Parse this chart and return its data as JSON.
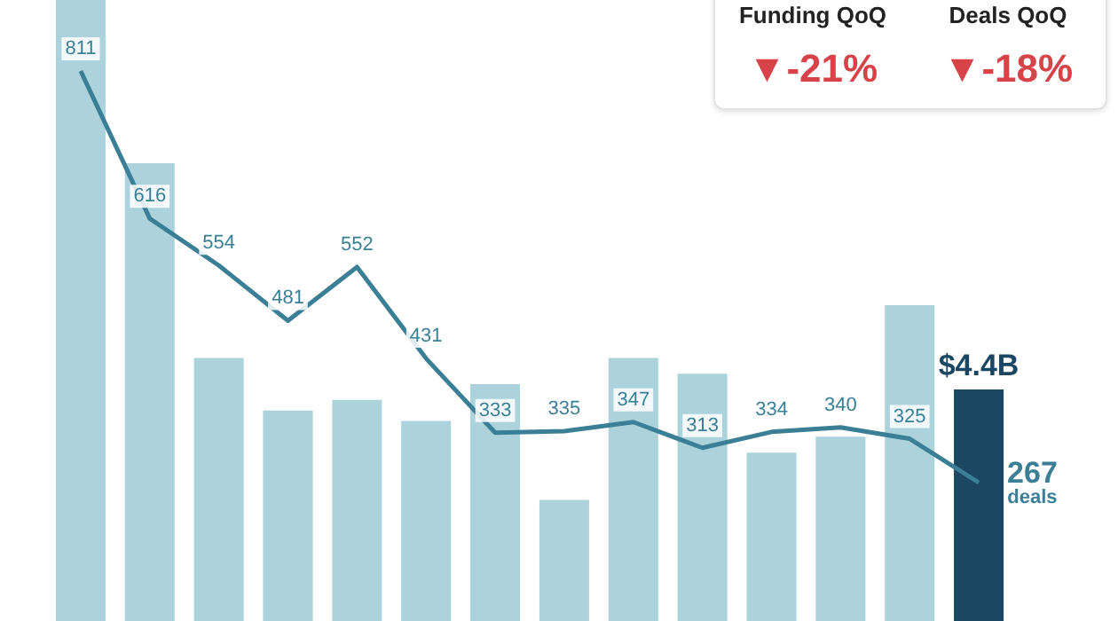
{
  "chart_data": [
    {
      "type": "bar",
      "tick_labels": false,
      "categories": [
        null,
        null,
        null,
        null,
        null,
        null,
        null,
        null,
        null,
        null,
        null,
        null,
        null,
        null
      ],
      "colors": [
        "#acd3dc",
        "#acd3dc",
        "#acd3dc",
        "#acd3dc",
        "#acd3dc",
        "#acd3dc",
        "#acd3dc",
        "#acd3dc",
        "#acd3dc",
        "#acd3dc",
        "#acd3dc",
        "#acd3dc",
        "#acd3dc",
        "#1c4763"
      ],
      "values": [
        11.8,
        8.7,
        5.0,
        4.0,
        4.2,
        3.8,
        4.5,
        2.3,
        5.0,
        4.7,
        3.2,
        3.5,
        6.0,
        4.4
      ],
      "value_labels": [
        null,
        null,
        null,
        null,
        null,
        null,
        null,
        null,
        null,
        null,
        null,
        null,
        null,
        "$4.4B"
      ],
      "annotations": [
        "Funding QoQ",
        "▼-21%",
        "Deals QoQ",
        "▼-18%"
      ]
    },
    {
      "type": "line",
      "categories": [
        null,
        null,
        null,
        null,
        null,
        null,
        null,
        null,
        null,
        null,
        null,
        null,
        null,
        null
      ],
      "series": [
        {
          "name": "deals",
          "color": "#3a7f95",
          "values": [
            811,
            616,
            554,
            481,
            552,
            431,
            333,
            335,
            347,
            313,
            334,
            340,
            325,
            267
          ]
        }
      ],
      "data_labels": true,
      "tick_labels": false,
      "marker": "none"
    }
  ]
}
